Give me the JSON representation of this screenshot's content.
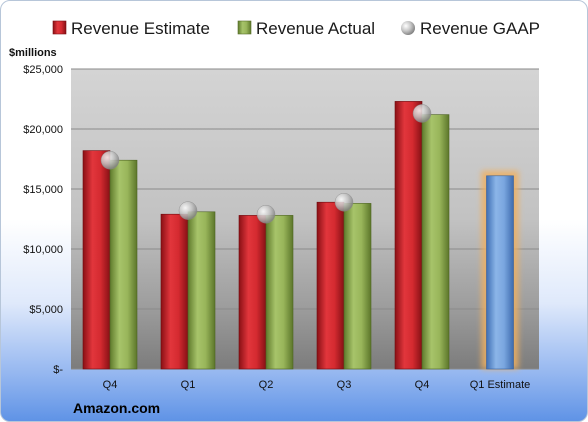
{
  "chart_data": {
    "type": "bar",
    "title": "",
    "unit_label": "$millions",
    "source_label": "Amazon.com",
    "categories": [
      "Q4",
      "Q1",
      "Q2",
      "Q3",
      "Q4",
      "Q1 Estimate"
    ],
    "y_ticks": [
      "$-",
      "$5,000",
      "$10,000",
      "$15,000",
      "$20,000",
      "$25,000"
    ],
    "ylim": [
      0,
      25000
    ],
    "grid": true,
    "legend_position": "top",
    "series": [
      {
        "name": "Revenue Estimate",
        "type": "bar",
        "color": "#c0272d",
        "values": [
          18200,
          12900,
          12800,
          13900,
          22300,
          null
        ]
      },
      {
        "name": "Revenue Actual",
        "type": "bar",
        "color": "#8eaa52",
        "values": [
          17400,
          13100,
          12800,
          13800,
          21200,
          null
        ]
      },
      {
        "name": "Revenue GAAP",
        "type": "marker",
        "color": "#c8c8c8",
        "values": [
          17400,
          13200,
          12900,
          13900,
          21300,
          null
        ]
      },
      {
        "name": "Q1 Estimate",
        "type": "bar",
        "color": "#6b9bd8",
        "highlight": "#f0b060",
        "values": [
          null,
          null,
          null,
          null,
          null,
          16100
        ]
      }
    ]
  }
}
